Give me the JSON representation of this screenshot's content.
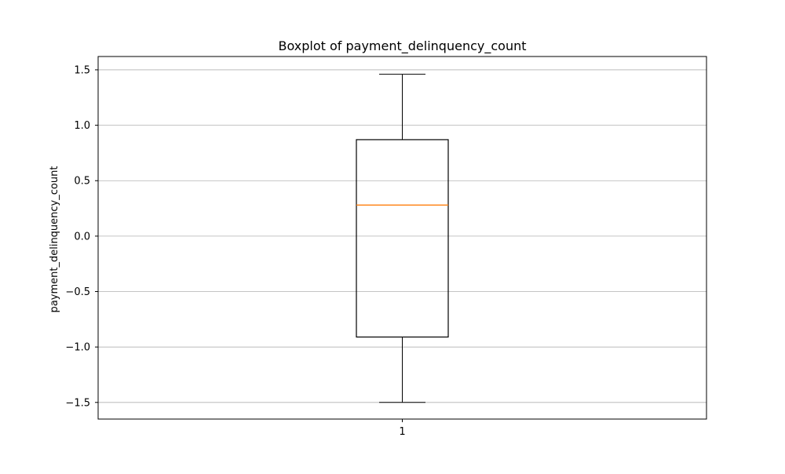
{
  "chart_data": {
    "type": "box",
    "title": "Boxplot of payment_delinquency_count",
    "xlabel": "",
    "ylabel": "payment_delinquency_count",
    "categories": [
      "1"
    ],
    "boxes": [
      {
        "label": "1",
        "whisker_low": -1.5,
        "q1": -0.91,
        "median": 0.28,
        "q3": 0.87,
        "whisker_high": 1.46
      }
    ],
    "ylim": [
      -1.65,
      1.62
    ],
    "yticks": [
      -1.5,
      -1.0,
      -0.5,
      0.0,
      0.5,
      1.0,
      1.5
    ],
    "ytick_labels": [
      "−1.5",
      "−1.0",
      "−0.5",
      "0.0",
      "0.5",
      "1.0",
      "1.5"
    ],
    "grid": "y-major",
    "colors": {
      "box": "#000000",
      "median": "#ff7f0e",
      "grid": "#b0b0b0"
    }
  }
}
